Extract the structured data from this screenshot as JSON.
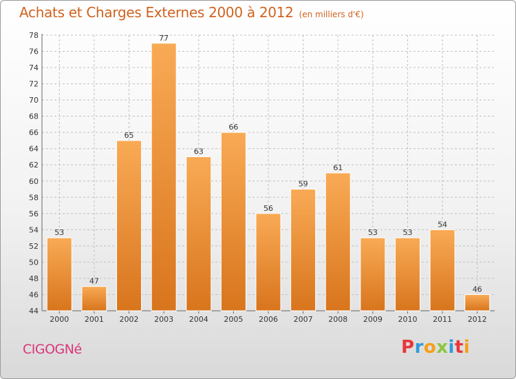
{
  "chart_data": {
    "type": "bar",
    "title": "Achats et Charges Externes 2000 à 2012",
    "subtitle": "(en milliers d'€)",
    "categories": [
      "2000",
      "2001",
      "2002",
      "2003",
      "2004",
      "2005",
      "2006",
      "2007",
      "2008",
      "2009",
      "2010",
      "2011",
      "2012"
    ],
    "values": [
      53,
      47,
      65,
      77,
      63,
      66,
      56,
      59,
      61,
      53,
      53,
      54,
      46
    ],
    "ylim": [
      44,
      78
    ],
    "yticks": [
      44,
      46,
      48,
      50,
      52,
      54,
      56,
      58,
      60,
      62,
      64,
      66,
      68,
      70,
      72,
      74,
      76,
      78
    ],
    "grid": true,
    "xlabel": "",
    "ylabel": ""
  },
  "commune": "CIGOGNé",
  "brand": {
    "letters": [
      "P",
      "r",
      "o",
      "x",
      "i",
      "t",
      "i"
    ]
  },
  "colors": {
    "bar_light": "#f9aa55",
    "bar_dark": "#d8751d",
    "title": "#d0621f",
    "commune": "#d9357a",
    "grid": "#bfbfbf",
    "brand": [
      "#e8363c",
      "#2f9ad9",
      "#f59f1a",
      "#8cc63f",
      "#2f9ad9",
      "#e8363c",
      "#f59f1a"
    ]
  }
}
